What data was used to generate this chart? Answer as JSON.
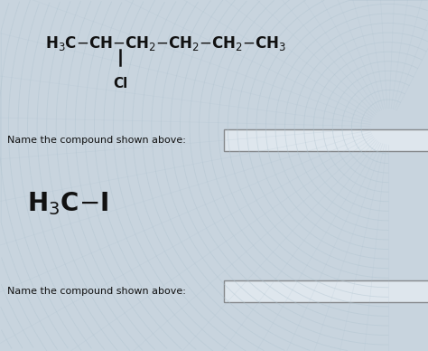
{
  "fig_bg": "#c8d4de",
  "text_color": "#111111",
  "box_color": "#e8eef4",
  "box_edge": "#666666",
  "label1": "Name the compound shown above:",
  "label2": "Name the compound shown above:",
  "arc_color": "#b0c4d0",
  "arc_color2": "#a8bece",
  "formula1_main": "H$_3$C$\\!-\\!$CH$\\!-\\!$CH$_2$$\\!-\\!$CH$_2$$\\!-\\!$CH$_2$$\\!-\\!$CH$_3$",
  "formula2": "H$_3$C$\\!-\\!$I",
  "cl_label": "Cl",
  "formula1_fontsize": 12,
  "formula2_fontsize": 20,
  "label_fontsize": 8,
  "cl_fontsize": 11
}
